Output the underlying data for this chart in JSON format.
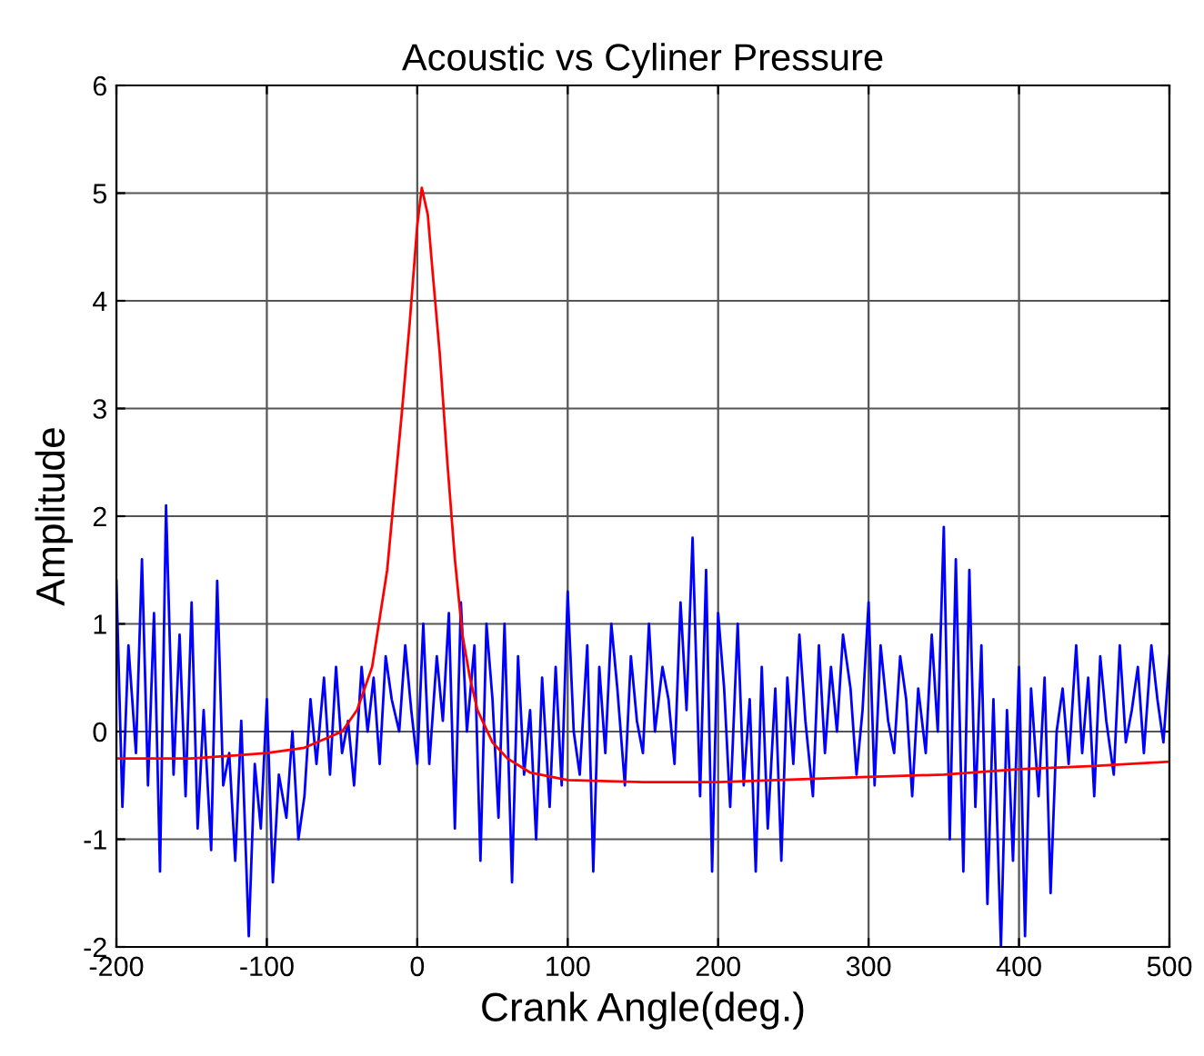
{
  "chart_data": {
    "type": "line",
    "title": "Acoustic vs Cyliner Pressure",
    "xlabel": "Crank Angle(deg.)",
    "ylabel": "Amplitude",
    "xlim": [
      -200,
      500
    ],
    "ylim": [
      -2,
      6
    ],
    "xticks": [
      -200,
      -100,
      0,
      100,
      200,
      300,
      400,
      500
    ],
    "yticks": [
      -2,
      -1,
      0,
      1,
      2,
      3,
      4,
      5,
      6
    ],
    "grid": true,
    "series": [
      {
        "color": "#0000ff",
        "x": [
          -200,
          -196,
          -192,
          -187,
          -183,
          -179,
          -175,
          -171,
          -167,
          -162,
          -158,
          -154,
          -150,
          -146,
          -142,
          -137,
          -133,
          -129,
          -125,
          -121,
          -117,
          -112,
          -108,
          -104,
          -100,
          -96,
          -92,
          -87,
          -83,
          -79,
          -75,
          -71,
          -67,
          -62,
          -58,
          -54,
          -50,
          -46,
          -42,
          -37,
          -33,
          -29,
          -25,
          -21,
          -17,
          -12,
          -8,
          -4,
          0,
          4,
          8,
          13,
          17,
          21,
          25,
          29,
          33,
          38,
          42,
          46,
          50,
          54,
          58,
          63,
          67,
          71,
          75,
          79,
          83,
          88,
          92,
          96,
          100,
          104,
          108,
          113,
          117,
          121,
          125,
          129,
          133,
          138,
          142,
          146,
          150,
          154,
          158,
          163,
          167,
          171,
          175,
          179,
          183,
          188,
          192,
          196,
          200,
          204,
          208,
          213,
          217,
          221,
          225,
          229,
          233,
          238,
          242,
          246,
          250,
          254,
          258,
          263,
          267,
          271,
          275,
          279,
          283,
          288,
          292,
          296,
          300,
          304,
          308,
          313,
          317,
          321,
          325,
          329,
          333,
          338,
          342,
          346,
          350,
          354,
          358,
          363,
          367,
          371,
          375,
          379,
          383,
          388,
          392,
          396,
          400,
          404,
          408,
          413,
          417,
          421,
          425,
          429,
          433,
          438,
          442,
          446,
          450,
          454,
          458,
          463,
          467,
          471,
          475,
          479,
          483,
          488,
          492,
          496,
          500
        ],
        "values": [
          1.4,
          -0.7,
          0.8,
          -0.2,
          1.6,
          -0.5,
          1.1,
          -1.3,
          2.1,
          -0.4,
          0.9,
          -0.6,
          1.2,
          -0.9,
          0.2,
          -1.1,
          1.4,
          -0.5,
          -0.2,
          -1.2,
          0.1,
          -1.9,
          -0.3,
          -0.9,
          0.3,
          -1.4,
          -0.4,
          -0.8,
          0.0,
          -1.0,
          -0.6,
          0.3,
          -0.3,
          0.5,
          -0.4,
          0.6,
          -0.2,
          0.1,
          -0.5,
          0.6,
          0.0,
          0.5,
          -0.3,
          0.7,
          0.3,
          0.0,
          0.8,
          0.2,
          -0.3,
          1.0,
          -0.3,
          0.7,
          0.1,
          1.1,
          -0.9,
          1.2,
          0.0,
          0.8,
          -1.2,
          1.0,
          0.3,
          -0.8,
          1.0,
          -1.4,
          0.7,
          -0.4,
          0.2,
          -1.0,
          0.5,
          -0.7,
          0.6,
          -0.5,
          1.3,
          0.0,
          -0.4,
          0.8,
          -1.3,
          0.6,
          -0.2,
          1.0,
          0.4,
          -0.5,
          0.7,
          0.1,
          -0.2,
          1.0,
          0.0,
          0.6,
          0.3,
          -0.3,
          1.2,
          0.2,
          1.8,
          -0.6,
          1.5,
          -1.3,
          1.1,
          0.4,
          -0.7,
          1.0,
          -0.5,
          0.3,
          -1.3,
          0.6,
          -0.9,
          0.4,
          -1.2,
          0.5,
          -0.3,
          0.9,
          0.1,
          -0.6,
          0.8,
          -0.2,
          0.6,
          0.0,
          0.9,
          0.4,
          -0.4,
          0.2,
          1.2,
          -0.5,
          0.8,
          0.1,
          -0.2,
          0.7,
          0.3,
          -0.6,
          0.4,
          -0.2,
          0.9,
          0.0,
          1.9,
          -1.0,
          1.6,
          -1.3,
          1.5,
          -0.7,
          0.8,
          -1.6,
          0.3,
          -2.0,
          0.2,
          -1.2,
          0.6,
          -1.9,
          0.4,
          -0.6,
          0.5,
          -1.5,
          0.0,
          0.4,
          -0.3,
          0.8,
          -0.2,
          0.5,
          -0.6,
          0.7,
          0.1,
          -0.4,
          0.8,
          -0.1,
          0.2,
          0.6,
          -0.2,
          0.8,
          0.3,
          -0.1,
          0.7
        ]
      },
      {
        "color": "#ff0000",
        "x": [
          -200,
          -150,
          -100,
          -75,
          -50,
          -40,
          -30,
          -20,
          -10,
          -5,
          0,
          3,
          7,
          10,
          15,
          20,
          25,
          30,
          35,
          40,
          50,
          60,
          75,
          100,
          150,
          200,
          300,
          350,
          400,
          450,
          500
        ],
        "values": [
          -0.25,
          -0.25,
          -0.2,
          -0.15,
          0.0,
          0.2,
          0.6,
          1.5,
          3.0,
          3.8,
          4.7,
          5.05,
          4.8,
          4.3,
          3.5,
          2.5,
          1.6,
          0.9,
          0.5,
          0.2,
          -0.1,
          -0.25,
          -0.38,
          -0.45,
          -0.47,
          -0.47,
          -0.42,
          -0.4,
          -0.35,
          -0.32,
          -0.28
        ]
      }
    ]
  }
}
